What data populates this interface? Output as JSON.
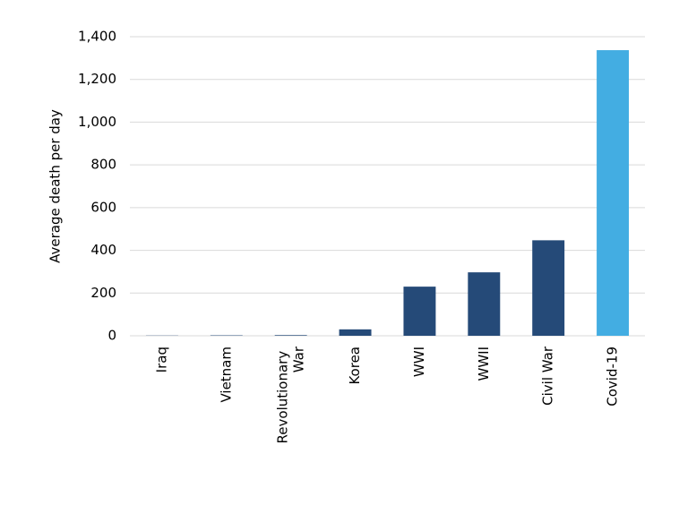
{
  "chart_data": {
    "type": "bar",
    "y_label": "Average death per day",
    "categories": [
      "Iraq",
      "Vietnam",
      "Revolutionary War",
      "Korea",
      "WWI",
      "WWII",
      "Civil War",
      "Covid-19"
    ],
    "values": [
      1,
      2,
      3,
      30,
      230,
      297,
      447,
      1337
    ],
    "colors": [
      "#254a78",
      "#254a78",
      "#254a78",
      "#254a78",
      "#254a78",
      "#254a78",
      "#254a78",
      "#43ade2"
    ],
    "ylim": [
      0,
      1400
    ],
    "yticks": [
      0,
      200,
      400,
      600,
      800,
      {
        "value": 1000,
        "label": "1,000"
      },
      {
        "value": 1200,
        "label": "1,200"
      },
      {
        "value": 1400,
        "label": "1,400"
      }
    ],
    "grid": true
  }
}
